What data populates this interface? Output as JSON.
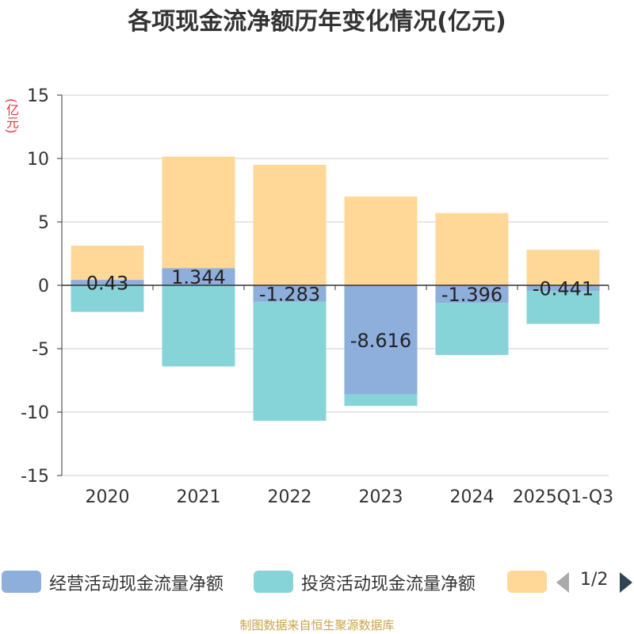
{
  "chart_data": {
    "type": "bar",
    "stacked": true,
    "title": "各项现金流净额历年变化情况(亿元)",
    "ylabel": "(亿元)",
    "categories": [
      "2020",
      "2021",
      "2022",
      "2023",
      "2024",
      "2025Q1-Q3"
    ],
    "ylim": [
      -15,
      15
    ],
    "yticks": [
      -15,
      -10,
      -5,
      0,
      5,
      10,
      15
    ],
    "series": [
      {
        "name": "经营活动现金流量净额",
        "color": "#8eaedc",
        "values": [
          0.43,
          1.344,
          -1.283,
          -8.616,
          -1.396,
          -0.441
        ],
        "labels": [
          "0.43",
          "1.344",
          "-1.283",
          "-8.616",
          "-1.396",
          "-0.441"
        ]
      },
      {
        "name": "投资活动现金流量净额",
        "color": "#87d4d8",
        "values": [
          -2.1,
          -6.4,
          -9.4,
          -0.9,
          -4.1,
          -2.6
        ]
      },
      {
        "name": "",
        "color": "#ffd898",
        "values": [
          2.7,
          8.8,
          9.5,
          7.0,
          5.7,
          2.8
        ]
      }
    ]
  },
  "legend": {
    "items": [
      "经营活动现金流量净额",
      "投资活动现金流量净额",
      ""
    ],
    "page": "1/2"
  },
  "footer": "制图数据来自恒生聚源数据库"
}
